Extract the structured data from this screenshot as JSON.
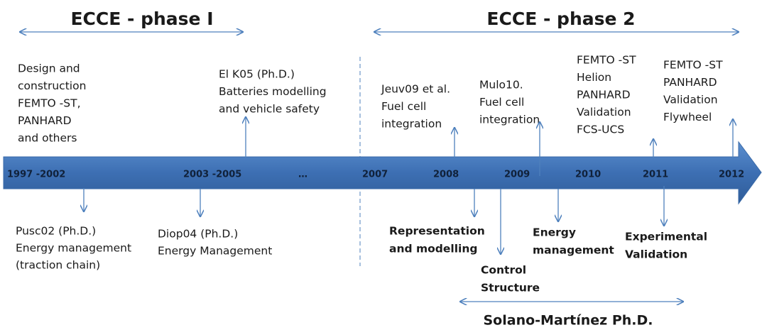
{
  "phases": [
    {
      "title": "ECCE  - phase I"
    },
    {
      "title": "ECCE - phase 2"
    }
  ],
  "years": [
    "1997 -2002",
    "2003 -2005",
    "…",
    "2007",
    "2008",
    "2009",
    "2010",
    "2011",
    "2012"
  ],
  "above_notes": [
    {
      "lines": [
        "Design and",
        "construction",
        "FEMTO -ST,",
        "PANHARD",
        "and others"
      ]
    },
    {
      "lines": [
        "El K05 (Ph.D.)",
        "Batteries modelling",
        "and  vehicle safety"
      ]
    },
    {
      "lines": [
        "Jeuv09 et al.",
        "Fuel cell",
        " integration"
      ]
    },
    {
      "lines": [
        "Mulo10.",
        "Fuel cell",
        "integration"
      ]
    },
    {
      "lines": [
        "FEMTO -ST",
        "Helion",
        "PANHARD",
        "Validation",
        "FCS-UCS"
      ]
    },
    {
      "lines": [
        "FEMTO -ST",
        "PANHARD",
        "Validation",
        "Flywheel"
      ]
    }
  ],
  "below_notes": [
    {
      "lines": [
        "Pusc02 (Ph.D.)",
        "Energy  management",
        "(traction chain)"
      ]
    },
    {
      "lines": [
        "Diop04 (Ph.D.)",
        "Energy Management"
      ]
    }
  ],
  "contributions": [
    {
      "lines": [
        "Representation",
        "and modelling"
      ]
    },
    {
      "lines": [
        "Control",
        "Structure"
      ]
    },
    {
      "lines": [
        "Energy",
        "management"
      ]
    },
    {
      "lines": [
        "Experimental",
        "Validation"
      ]
    }
  ],
  "thesis": "Solano-Martínez Ph.D."
}
